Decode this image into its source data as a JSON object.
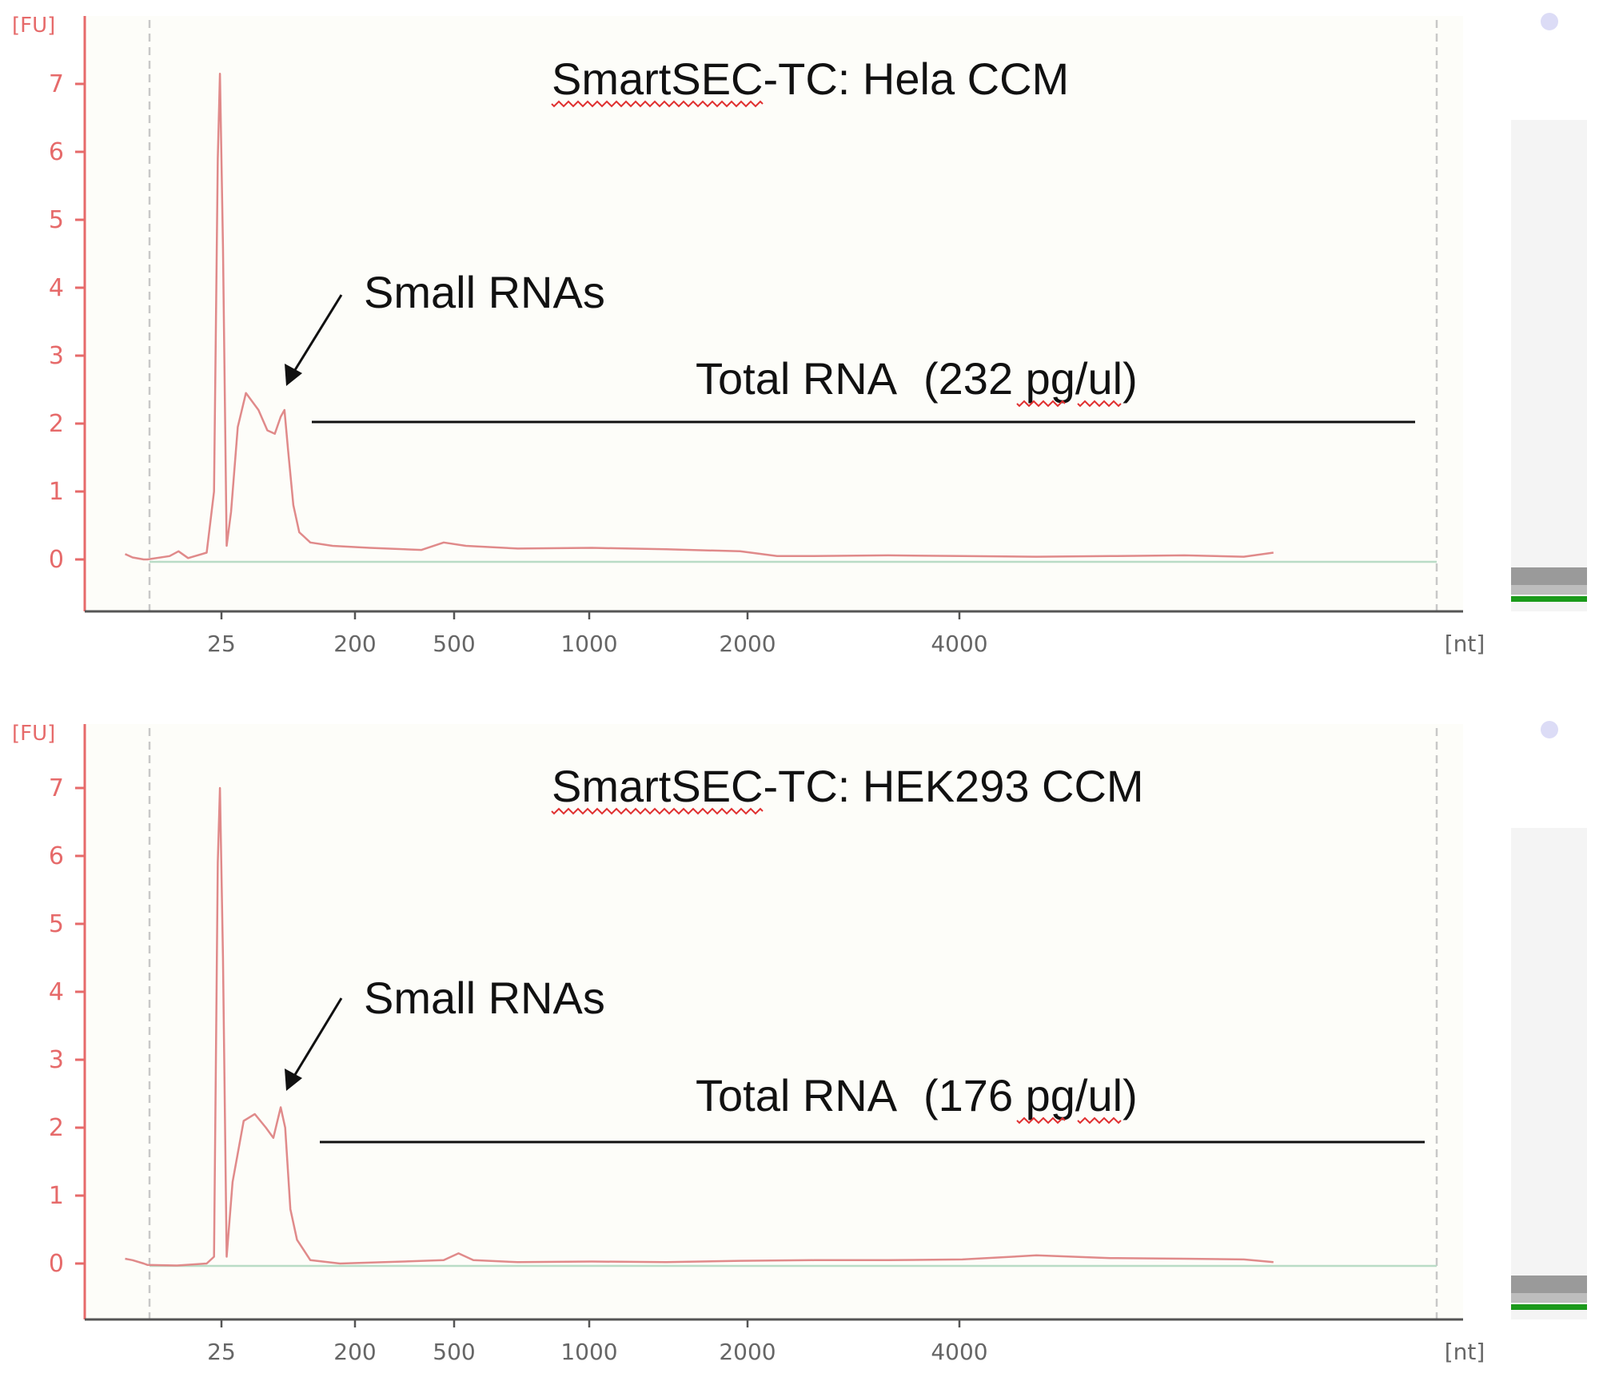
{
  "colors": {
    "axis": "#e66a6a",
    "trace": "#e08a8a",
    "baseline": "#b9dcc6",
    "plot_bg": "#fdfdf9",
    "dashed": "#c8c8c8",
    "text": "#111111",
    "tick_text": "#666666",
    "squiggle": "#e03030",
    "marker_green": "#1b9a1b",
    "marker_dot": "#dcdcf6"
  },
  "chart_data": [
    {
      "type": "line",
      "title": "SmartSEC-TC: Hela CCM",
      "y_unit": "[FU]",
      "x_unit": "[nt]",
      "yticks": [
        "0",
        "1",
        "2",
        "3",
        "4",
        "5",
        "6",
        "7"
      ],
      "xticks": [
        "25",
        "200",
        "500",
        "1000",
        "2000",
        "4000"
      ],
      "ylim": [
        -0.7,
        7.9
      ],
      "grid": false,
      "annotations": {
        "small_rnas": "Small RNAs",
        "total_rna": "Total RNA",
        "concentration": "(232 pg/ul)"
      },
      "series": [
        {
          "values": [
            [
              -0.3,
              0.08
            ],
            [
              -0.2,
              0.03
            ],
            [
              -0.05,
              0.0
            ],
            [
              0.0,
              0.0
            ],
            [
              0.3,
              0.05
            ],
            [
              0.42,
              0.12
            ],
            [
              0.55,
              0.02
            ],
            [
              0.8,
              0.1
            ],
            [
              0.9,
              1.0
            ],
            [
              0.95,
              5.9
            ],
            [
              0.98,
              7.15
            ],
            [
              1.02,
              4.6
            ],
            [
              1.07,
              0.2
            ],
            [
              1.13,
              0.7
            ],
            [
              1.22,
              1.95
            ],
            [
              1.33,
              2.45
            ],
            [
              1.5,
              2.2
            ],
            [
              1.62,
              1.9
            ],
            [
              1.72,
              1.85
            ],
            [
              1.8,
              2.1
            ],
            [
              1.85,
              2.2
            ],
            [
              1.9,
              1.6
            ],
            [
              1.97,
              0.8
            ],
            [
              2.05,
              0.4
            ],
            [
              2.2,
              0.25
            ],
            [
              2.5,
              0.2
            ],
            [
              3.0,
              0.17
            ],
            [
              3.7,
              0.14
            ],
            [
              4.0,
              0.25
            ],
            [
              4.3,
              0.2
            ],
            [
              5.0,
              0.16
            ],
            [
              6.0,
              0.17
            ],
            [
              7.0,
              0.15
            ],
            [
              8.0,
              0.12
            ],
            [
              8.5,
              0.05
            ],
            [
              9.0,
              0.05
            ],
            [
              10.0,
              0.06
            ],
            [
              11.0,
              0.05
            ],
            [
              12.0,
              0.04
            ],
            [
              13.0,
              0.05
            ],
            [
              14.0,
              0.06
            ],
            [
              14.8,
              0.04
            ],
            [
              15.2,
              0.1
            ]
          ]
        }
      ]
    },
    {
      "type": "line",
      "title": "SmartSEC-TC: HEK293 CCM",
      "y_unit": "[FU]",
      "x_unit": "[nt]",
      "yticks": [
        "0",
        "1",
        "2",
        "3",
        "4",
        "5",
        "6",
        "7"
      ],
      "xticks": [
        "25",
        "200",
        "500",
        "1000",
        "2000",
        "4000"
      ],
      "ylim": [
        -0.7,
        7.9
      ],
      "grid": false,
      "annotations": {
        "small_rnas": "Small RNAs",
        "total_rna": "Total RNA",
        "concentration": "(176 pg/ul)"
      },
      "series": [
        {
          "values": [
            [
              -0.3,
              0.07
            ],
            [
              -0.2,
              0.05
            ],
            [
              -0.05,
              0.0
            ],
            [
              0.0,
              -0.02
            ],
            [
              0.4,
              -0.03
            ],
            [
              0.8,
              0.0
            ],
            [
              0.9,
              0.1
            ],
            [
              0.95,
              5.9
            ],
            [
              0.98,
              7.0
            ],
            [
              1.02,
              4.5
            ],
            [
              1.07,
              0.1
            ],
            [
              1.15,
              1.2
            ],
            [
              1.3,
              2.1
            ],
            [
              1.45,
              2.2
            ],
            [
              1.6,
              2.0
            ],
            [
              1.7,
              1.85
            ],
            [
              1.8,
              2.3
            ],
            [
              1.86,
              2.0
            ],
            [
              1.93,
              0.8
            ],
            [
              2.02,
              0.35
            ],
            [
              2.2,
              0.05
            ],
            [
              2.6,
              0.0
            ],
            [
              3.2,
              0.02
            ],
            [
              4.0,
              0.05
            ],
            [
              4.2,
              0.15
            ],
            [
              4.4,
              0.05
            ],
            [
              5.0,
              0.02
            ],
            [
              6.0,
              0.03
            ],
            [
              7.0,
              0.02
            ],
            [
              8.0,
              0.04
            ],
            [
              9.0,
              0.05
            ],
            [
              10.0,
              0.05
            ],
            [
              11.0,
              0.06
            ],
            [
              12.0,
              0.12
            ],
            [
              13.0,
              0.08
            ],
            [
              14.0,
              0.07
            ],
            [
              14.8,
              0.06
            ],
            [
              15.2,
              0.02
            ]
          ]
        }
      ]
    }
  ]
}
